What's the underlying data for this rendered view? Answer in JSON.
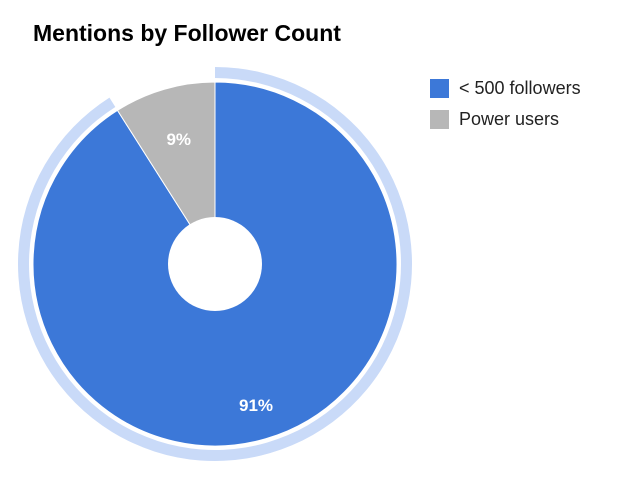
{
  "chart_data": {
    "type": "pie",
    "title": "Mentions by Follower Count",
    "donut": true,
    "categories": [
      "< 500 followers",
      "Power users"
    ],
    "values": [
      91,
      9
    ],
    "value_labels": [
      "91%",
      "9%"
    ],
    "colors": [
      "#3c78d8",
      "#b7b7b7"
    ],
    "highlight_color": "#c9daf8",
    "highlighted_slice": "< 500 followers",
    "legend_position": "right"
  }
}
